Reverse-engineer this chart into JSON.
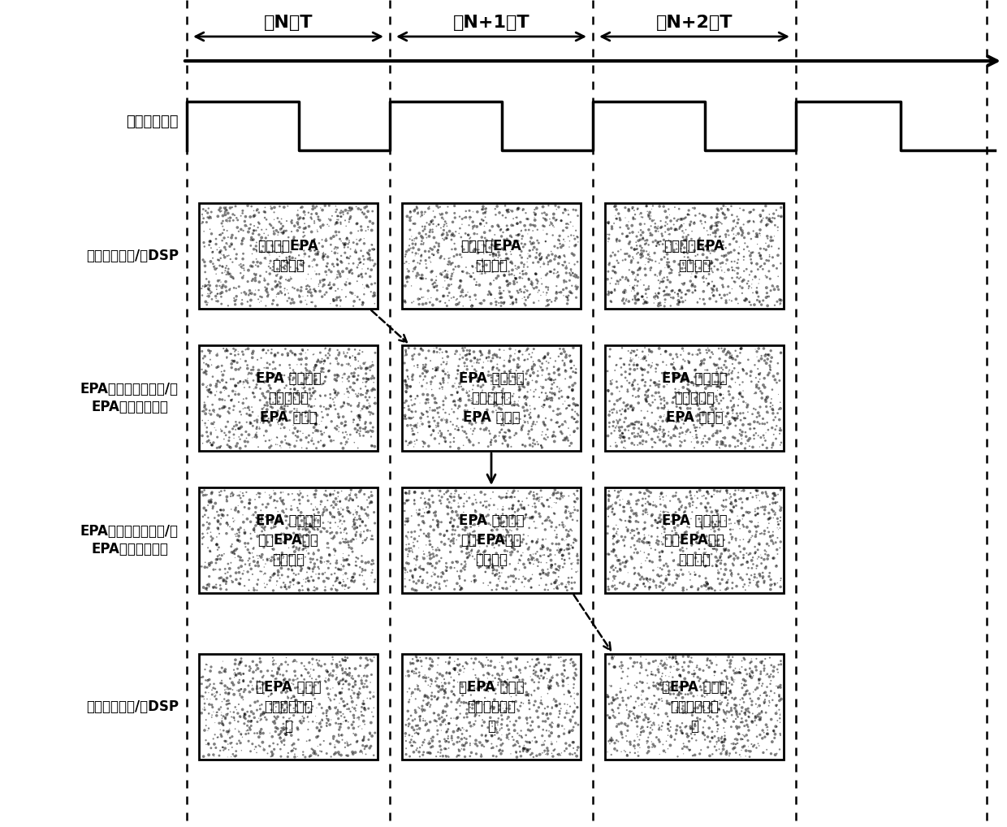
{
  "period_labels": [
    "第N个T",
    "第N+1个T",
    "第N+2个T"
  ],
  "row_labels": [
    "网络同步信号",
    "主控上位机和/或DSP",
    "EPA主站通信模块和/或\nEPA从站通信模块",
    "EPA主站通信模块和/或\nEPA从站通信模块",
    "主控上位机和/或DSP"
  ],
  "box_texts": {
    "row1": [
      "数据写入EPA\n通信模块",
      "数据写入EPA\n通信模块",
      "数据写入EPA\n通信模块"
    ],
    "row2": [
      "EPA 通信模块\n发送数据到\nEPA 网络上",
      "EPA 通信模块\n发送数据到\nEPA 网络上",
      "EPA 通信模块\n发送数据到\nEPA 网络上"
    ],
    "row3": [
      "EPA 通信模块\n接收EPA网络\n上的数据",
      "EPA 通信模块\n接收EPA网络\n上的数据",
      "EPA 通信模块\n接收EPA网络\n上的数据"
    ],
    "row4": [
      "从EPA 通信模\n块读数据并处\n理",
      "从EPA 通信模\n块读数据并处\n理",
      "从EPA 通信模\n块读数据并处\n理"
    ]
  },
  "background_color": "#ffffff",
  "fig_width": 12.4,
  "fig_height": 10.18,
  "dpi": 100
}
